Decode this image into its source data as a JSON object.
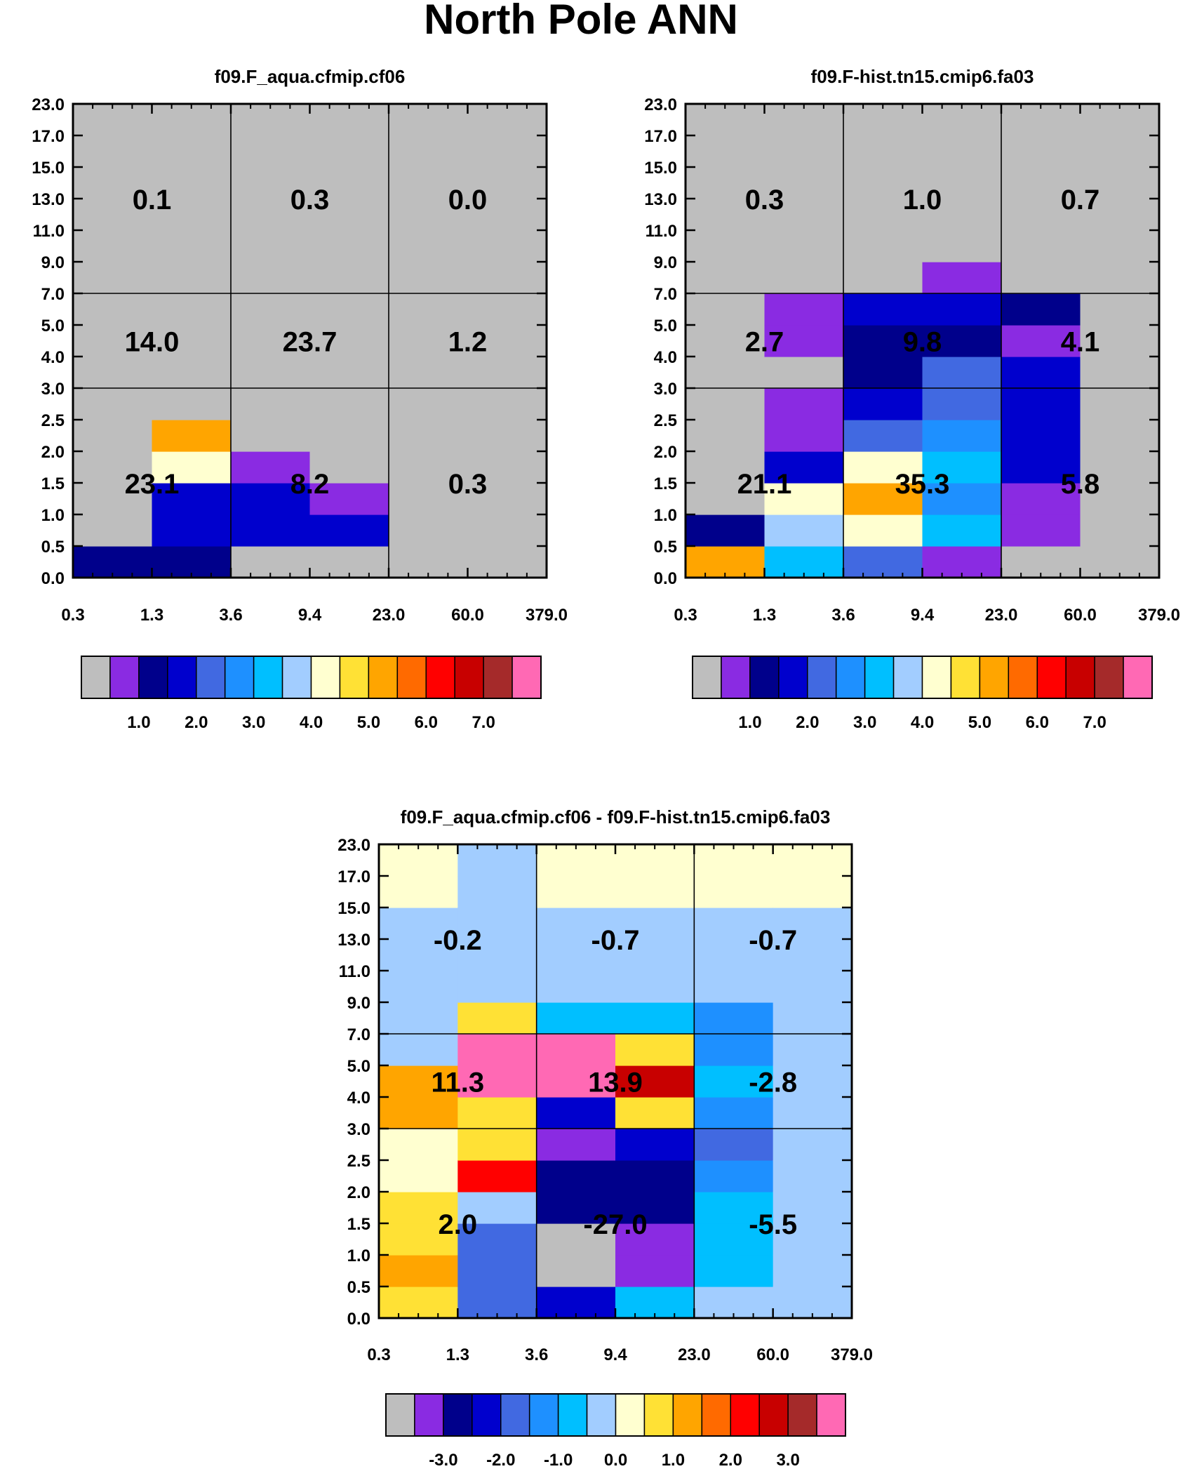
{
  "title": "North Pole ANN",
  "chart_data": [
    {
      "type": "heatmap",
      "title": "f09.F_aqua.cfmip.cf06",
      "x_tick_labels": [
        "0.3",
        "1.3",
        "3.6",
        "9.4",
        "23.0",
        "60.0",
        "379.0"
      ],
      "y_tick_labels": [
        "0.0",
        "0.5",
        "1.0",
        "1.5",
        "2.0",
        "2.5",
        "3.0",
        "4.0",
        "5.0",
        "7.0",
        "9.0",
        "11.0",
        "13.0",
        "15.0",
        "17.0",
        "23.0"
      ],
      "colorbar_tick_labels": [
        "1.0",
        "2.0",
        "3.0",
        "4.0",
        "5.0",
        "6.0",
        "7.0"
      ],
      "colorbar_colors": [
        "#bebebe",
        "#8a2be2",
        "#00008b",
        "#0000cd",
        "#4169e1",
        "#1e90ff",
        "#00bfff",
        "#a2cdff",
        "#ffffd0",
        "#ffe135",
        "#ffa500",
        "#ff6a00",
        "#ff0000",
        "#c80000",
        "#a52a2a",
        "#ff69b4"
      ],
      "cells": [
        [
          2,
          0,
          0,
          0,
          0,
          0,
          0,
          0,
          0,
          0,
          0,
          0,
          0,
          0,
          0
        ],
        [
          2,
          3,
          3,
          8,
          10,
          0,
          0,
          0,
          0,
          0,
          0,
          0,
          0,
          0,
          0
        ],
        [
          0,
          3,
          3,
          1,
          0,
          0,
          0,
          0,
          0,
          0,
          0,
          0,
          0,
          0,
          0
        ],
        [
          0,
          3,
          1,
          0,
          0,
          0,
          0,
          0,
          0,
          0,
          0,
          0,
          0,
          0,
          0
        ],
        [
          0,
          0,
          0,
          0,
          0,
          0,
          0,
          0,
          0,
          0,
          0,
          0,
          0,
          0,
          0
        ],
        [
          0,
          0,
          0,
          0,
          0,
          0,
          0,
          0,
          0,
          0,
          0,
          0,
          0,
          0,
          0
        ]
      ],
      "box_labels": [
        [
          "23.1",
          "8.2",
          "0.3"
        ],
        [
          "14.0",
          "23.7",
          "1.2"
        ],
        [
          "0.1",
          "0.3",
          "0.0"
        ]
      ]
    },
    {
      "type": "heatmap",
      "title": "f09.F-hist.tn15.cmip6.fa03",
      "x_tick_labels": [
        "0.3",
        "1.3",
        "3.6",
        "9.4",
        "23.0",
        "60.0",
        "379.0"
      ],
      "y_tick_labels": [
        "0.0",
        "0.5",
        "1.0",
        "1.5",
        "2.0",
        "2.5",
        "3.0",
        "4.0",
        "5.0",
        "7.0",
        "9.0",
        "11.0",
        "13.0",
        "15.0",
        "17.0",
        "23.0"
      ],
      "colorbar_tick_labels": [
        "1.0",
        "2.0",
        "3.0",
        "4.0",
        "5.0",
        "6.0",
        "7.0"
      ],
      "colorbar_colors": [
        "#bebebe",
        "#8a2be2",
        "#00008b",
        "#0000cd",
        "#4169e1",
        "#1e90ff",
        "#00bfff",
        "#a2cdff",
        "#ffffd0",
        "#ffe135",
        "#ffa500",
        "#ff6a00",
        "#ff0000",
        "#c80000",
        "#a52a2a",
        "#ff69b4"
      ],
      "cells": [
        [
          10,
          2,
          0,
          0,
          0,
          0,
          0,
          0,
          0,
          0,
          0,
          0,
          0,
          0,
          0
        ],
        [
          6,
          7,
          8,
          3,
          1,
          1,
          0,
          1,
          1,
          0,
          0,
          0,
          0,
          0,
          0
        ],
        [
          4,
          8,
          10,
          8,
          4,
          3,
          2,
          2,
          3,
          0,
          0,
          0,
          0,
          0,
          0
        ],
        [
          1,
          6,
          5,
          6,
          5,
          4,
          4,
          2,
          3,
          1,
          0,
          0,
          0,
          0,
          0
        ],
        [
          0,
          1,
          1,
          3,
          3,
          3,
          3,
          1,
          2,
          0,
          0,
          0,
          0,
          0,
          0
        ],
        [
          0,
          0,
          0,
          0,
          0,
          0,
          0,
          0,
          0,
          0,
          0,
          0,
          0,
          0,
          0
        ]
      ],
      "box_labels": [
        [
          "21.1",
          "35.3",
          "5.8"
        ],
        [
          "2.7",
          "9.8",
          "4.1"
        ],
        [
          "0.3",
          "1.0",
          "0.7"
        ]
      ]
    },
    {
      "type": "heatmap",
      "title": "f09.F_aqua.cfmip.cf06 - f09.F-hist.tn15.cmip6.fa03",
      "x_tick_labels": [
        "0.3",
        "1.3",
        "3.6",
        "9.4",
        "23.0",
        "60.0",
        "379.0"
      ],
      "y_tick_labels": [
        "0.0",
        "0.5",
        "1.0",
        "1.5",
        "2.0",
        "2.5",
        "3.0",
        "4.0",
        "5.0",
        "7.0",
        "9.0",
        "11.0",
        "13.0",
        "15.0",
        "17.0",
        "23.0"
      ],
      "colorbar_tick_labels": [
        "-3.0",
        "-2.0",
        "-1.0",
        "0.0",
        "1.0",
        "2.0",
        "3.0"
      ],
      "colorbar_colors": [
        "#bebebe",
        "#8a2be2",
        "#00008b",
        "#0000cd",
        "#4169e1",
        "#1e90ff",
        "#00bfff",
        "#a2cdff",
        "#ffffd0",
        "#ffe135",
        "#ffa500",
        "#ff6a00",
        "#ff0000",
        "#c80000",
        "#a52a2a",
        "#ff69b4"
      ],
      "cells": [
        [
          9,
          10,
          9,
          9,
          8,
          8,
          10,
          10,
          7,
          7,
          7,
          7,
          7,
          8,
          8
        ],
        [
          4,
          4,
          4,
          7,
          12,
          9,
          9,
          15,
          15,
          9,
          7,
          7,
          7,
          7,
          7
        ],
        [
          3,
          0,
          0,
          2,
          2,
          1,
          3,
          15,
          15,
          6,
          7,
          7,
          7,
          8,
          8
        ],
        [
          6,
          1,
          1,
          2,
          2,
          3,
          9,
          13,
          9,
          6,
          7,
          7,
          7,
          8,
          8
        ],
        [
          7,
          6,
          6,
          6,
          5,
          4,
          5,
          6,
          5,
          5,
          7,
          7,
          7,
          8,
          8
        ],
        [
          7,
          7,
          7,
          7,
          7,
          7,
          7,
          7,
          7,
          7,
          7,
          7,
          7,
          8,
          8
        ]
      ],
      "box_labels": [
        [
          "2.0",
          "-27.0",
          "-5.5"
        ],
        [
          "11.3",
          "13.9",
          "-2.8"
        ],
        [
          "-0.2",
          "-0.7",
          "-0.7"
        ]
      ]
    }
  ]
}
